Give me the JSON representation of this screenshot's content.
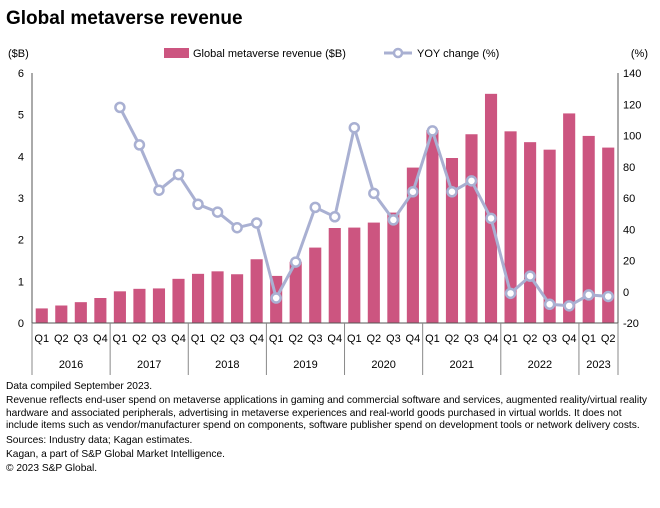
{
  "page": {
    "title": "Global metaverse revenue"
  },
  "chart_data": {
    "type": "bar+line",
    "title": "Global metaverse revenue",
    "left_axis": {
      "label": "($B)",
      "range": [
        0,
        6
      ],
      "ticks": [
        "0",
        "1",
        "2",
        "3",
        "4",
        "5",
        "6"
      ]
    },
    "right_axis": {
      "label": "(%)",
      "range": [
        -20,
        140
      ],
      "ticks": [
        "-20",
        "0",
        "20",
        "40",
        "60",
        "80",
        "100",
        "120",
        "140"
      ]
    },
    "legend": {
      "bar_label": "Global metaverse revenue ($B)",
      "line_label": "YOY change (%)",
      "position": "top"
    },
    "quarters": [
      "Q1",
      "Q2",
      "Q3",
      "Q4",
      "Q1",
      "Q2",
      "Q3",
      "Q4",
      "Q1",
      "Q2",
      "Q3",
      "Q4",
      "Q1",
      "Q2",
      "Q3",
      "Q4",
      "Q1",
      "Q2",
      "Q3",
      "Q4",
      "Q1",
      "Q2",
      "Q3",
      "Q4",
      "Q1",
      "Q2",
      "Q3",
      "Q4",
      "Q1",
      "Q2"
    ],
    "years": [
      {
        "label": "2016",
        "count": 4
      },
      {
        "label": "2017",
        "count": 4
      },
      {
        "label": "2018",
        "count": 4
      },
      {
        "label": "2019",
        "count": 4
      },
      {
        "label": "2020",
        "count": 4
      },
      {
        "label": "2021",
        "count": 4
      },
      {
        "label": "2022",
        "count": 4
      },
      {
        "label": "2023",
        "count": 2
      }
    ],
    "series": [
      {
        "name": "Global metaverse revenue ($B)",
        "type": "bar",
        "axis": "left",
        "color": "#cc5580",
        "values": [
          0.35,
          0.42,
          0.5,
          0.6,
          0.76,
          0.82,
          0.83,
          1.06,
          1.18,
          1.24,
          1.17,
          1.53,
          1.13,
          1.47,
          1.81,
          2.28,
          2.29,
          2.41,
          2.65,
          3.73,
          4.63,
          3.96,
          4.53,
          5.5,
          4.6,
          4.34,
          4.16,
          5.03,
          4.49,
          4.21
        ]
      },
      {
        "name": "YOY change (%)",
        "type": "line",
        "axis": "right",
        "color": "#a9b0d2",
        "values": [
          null,
          null,
          null,
          null,
          118,
          94,
          65,
          75,
          56,
          51,
          41,
          44,
          -4,
          19,
          54,
          48,
          105,
          63,
          46,
          64,
          103,
          64,
          71,
          47,
          -1,
          10,
          -8,
          -9,
          -2,
          -3
        ]
      }
    ]
  },
  "notes": {
    "compiled": "Data compiled September 2023.",
    "description": "Revenue reflects end-user spend on metaverse applications in gaming and commercial software and services, augmented reality/virtual reality hardware and associated peripherals, advertising in metaverse experiences and real-world goods purchased in virtual worlds. It does not include items such as vendor/manufacturer spend on components, software publisher spend on development tools or network delivery costs.",
    "sources": "Sources: Industry data; Kagan estimates.",
    "kagan": "Kagan, a part of S&P Global Market Intelligence.",
    "copyright": "© 2023 S&P Global."
  }
}
